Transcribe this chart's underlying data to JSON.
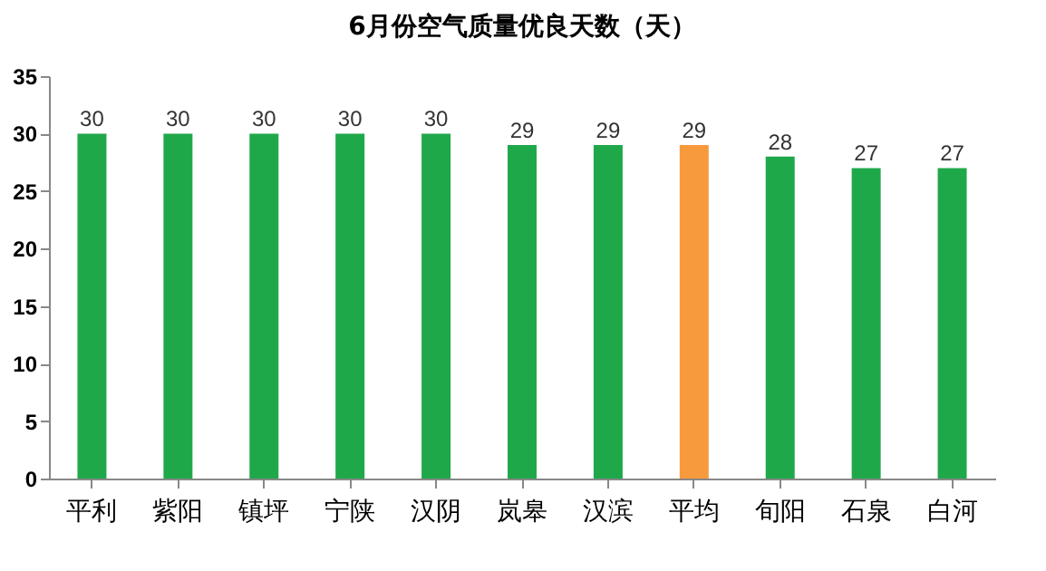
{
  "chart_data": {
    "type": "bar",
    "title": "6月份空气质量优良天数（天）",
    "categories": [
      "平利",
      "紫阳",
      "镇坪",
      "宁陕",
      "汉阴",
      "岚皋",
      "汉滨",
      "平均",
      "旬阳",
      "石泉",
      "白河"
    ],
    "values": [
      30,
      30,
      30,
      30,
      30,
      29,
      29,
      29,
      28,
      27,
      27
    ],
    "colors": [
      "#1fa84a",
      "#1fa84a",
      "#1fa84a",
      "#1fa84a",
      "#1fa84a",
      "#1fa84a",
      "#1fa84a",
      "#f79a3e",
      "#1fa84a",
      "#1fa84a",
      "#1fa84a"
    ],
    "ylim": [
      0,
      35
    ],
    "yticks": [
      0,
      5,
      10,
      15,
      20,
      25,
      30,
      35
    ],
    "data_labels": true
  }
}
